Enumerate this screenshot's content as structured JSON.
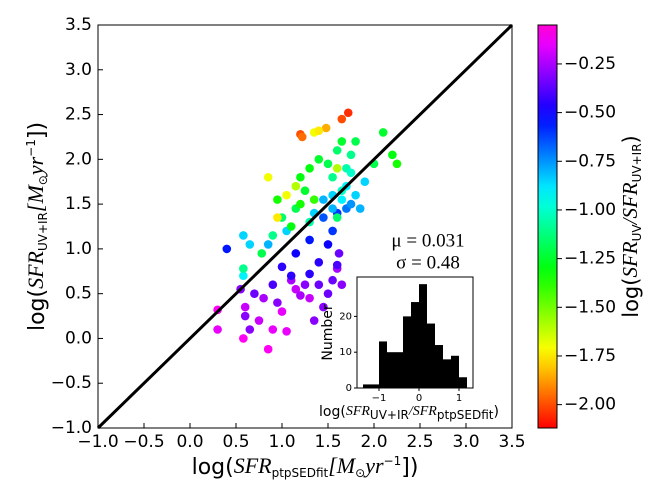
{
  "chart_data": {
    "type": "scatter",
    "xlabel": [
      "log(",
      "SFR",
      "ptpSEDfit",
      "[M",
      "⊙",
      "yr",
      "−1",
      "])"
    ],
    "ylabel": [
      "log(",
      "SFR",
      "UV+IR",
      "[M",
      "⊙",
      "yr",
      "−1",
      "])"
    ],
    "xlim": [
      -1.0,
      3.5
    ],
    "ylim": [
      -1.0,
      3.5
    ],
    "xticks": [
      {
        "value": -1.0,
        "label": "−1.0"
      },
      {
        "value": -0.5,
        "label": "−0.5"
      },
      {
        "value": 0,
        "label": "0.0"
      },
      {
        "value": 0.5,
        "label": "0.5"
      },
      {
        "value": 1,
        "label": "1.0"
      },
      {
        "value": 1.5,
        "label": "1.5"
      },
      {
        "value": 2,
        "label": "2.0"
      },
      {
        "value": 2.5,
        "label": "2.5"
      },
      {
        "value": 3,
        "label": "3.0"
      },
      {
        "value": 3.5,
        "label": "3.5"
      }
    ],
    "yticks": [
      {
        "value": -1.0,
        "label": "−1.0"
      },
      {
        "value": -0.5,
        "label": "−0.5"
      },
      {
        "value": 0,
        "label": "0.0"
      },
      {
        "value": 0.5,
        "label": "0.5"
      },
      {
        "value": 1,
        "label": "1.0"
      },
      {
        "value": 1.5,
        "label": "1.5"
      },
      {
        "value": 2,
        "label": "2.0"
      },
      {
        "value": 2.5,
        "label": "2.5"
      },
      {
        "value": 3,
        "label": "3.0"
      },
      {
        "value": 3.5,
        "label": "3.5"
      }
    ],
    "one_to_one_line": true,
    "colormap": "gist_rainbow",
    "clim": [
      -2.12,
      -0.05
    ],
    "colorbar_label": [
      "log(",
      "SFR",
      "UV",
      "/",
      "SFR",
      "UV+IR",
      ")"
    ],
    "colorbar_ticks": [
      {
        "value": -0.25,
        "label": "−0.25"
      },
      {
        "value": -0.5,
        "label": "−0.50"
      },
      {
        "value": -0.75,
        "label": "−0.75"
      },
      {
        "value": -1.0,
        "label": "−1.00"
      },
      {
        "value": -1.25,
        "label": "−1.25"
      },
      {
        "value": -1.5,
        "label": "−1.50"
      },
      {
        "value": -1.75,
        "label": "−1.75"
      },
      {
        "value": -2.0,
        "label": "−2.00"
      }
    ],
    "x": [
      0.3,
      0.3,
      0.58,
      0.6,
      0.75,
      0.85,
      0.9,
      1.0,
      1.05,
      1.15,
      1.2,
      1.3,
      1.35,
      1.45,
      1.5,
      1.55,
      1.6,
      1.62,
      1.65,
      0.6,
      0.7,
      0.65,
      0.95,
      1.1,
      1.25,
      1.4,
      0.8,
      0.55,
      0.4,
      1.0,
      1.15,
      1.3,
      1.4,
      1.5,
      1.55,
      1.45,
      1.6,
      1.7,
      1.75,
      1.1,
      0.9,
      1.3,
      1.6,
      0.58,
      0.58,
      0.65,
      0.85,
      1.05,
      1.35,
      1.55,
      1.65,
      1.8,
      1.9,
      1.55,
      1.7,
      1.45,
      1.85,
      0.78,
      0.9,
      1.0,
      1.15,
      1.2,
      1.25,
      1.3,
      1.4,
      1.5,
      1.6,
      1.55,
      1.7,
      1.75,
      1.8,
      2.1,
      2.2,
      2.0,
      1.65,
      1.35,
      1.2,
      1.1,
      0.95,
      1.75,
      1.65,
      1.3,
      0.58,
      1.6,
      2.25,
      1.72,
      1.65,
      1.2,
      1.22,
      1.48,
      1.35,
      1.4,
      0.85,
      1.05,
      0.95,
      1.6,
      1.15
    ],
    "y": [
      0.32,
      0.1,
      0.0,
      0.35,
      0.2,
      -0.12,
      0.1,
      0.3,
      0.08,
      0.55,
      0.48,
      0.45,
      0.2,
      0.35,
      0.5,
      0.65,
      0.78,
      0.95,
      0.6,
      0.25,
      0.5,
      0.1,
      0.4,
      0.65,
      0.6,
      0.6,
      0.45,
      0.55,
      1.0,
      0.8,
      0.95,
      1.1,
      0.85,
      1.05,
      1.2,
      1.35,
      1.4,
      1.45,
      1.5,
      0.7,
      0.6,
      0.72,
      0.82,
      1.15,
      0.7,
      1.05,
      1.05,
      1.2,
      1.4,
      1.6,
      1.55,
      1.6,
      1.75,
      1.45,
      1.7,
      1.55,
      1.45,
      0.95,
      1.15,
      1.35,
      1.45,
      1.8,
      1.65,
      1.9,
      2.0,
      1.95,
      2.1,
      1.8,
      1.9,
      2.05,
      2.2,
      2.3,
      2.05,
      1.95,
      2.2,
      1.55,
      1.5,
      1.25,
      1.55,
      1.85,
      1.65,
      1.3,
      0.78,
      1.35,
      1.95,
      2.52,
      2.45,
      2.28,
      2.25,
      2.35,
      2.3,
      2.32,
      1.8,
      1.6,
      1.35,
      1.9,
      1.7
    ],
    "c": [
      -0.1,
      -0.15,
      -0.1,
      -0.2,
      -0.2,
      -0.1,
      -0.15,
      -0.15,
      -0.15,
      -0.2,
      -0.25,
      -0.2,
      -0.3,
      -0.3,
      -0.35,
      -0.35,
      -0.25,
      -0.35,
      -0.3,
      -0.3,
      -0.35,
      -0.3,
      -0.3,
      -0.25,
      -0.3,
      -0.35,
      -0.25,
      -0.3,
      -0.55,
      -0.45,
      -0.5,
      -0.55,
      -0.45,
      -0.5,
      -0.6,
      -0.65,
      -0.6,
      -0.7,
      -0.75,
      -0.45,
      -0.4,
      -0.45,
      -0.4,
      -0.85,
      -0.9,
      -0.85,
      -0.8,
      -0.85,
      -0.85,
      -0.85,
      -0.9,
      -0.85,
      -0.85,
      -0.8,
      -0.9,
      -0.8,
      -0.8,
      -1.2,
      -1.1,
      -1.15,
      -1.2,
      -1.3,
      -1.25,
      -1.3,
      -1.25,
      -1.2,
      -1.15,
      -1.1,
      -1.05,
      -1.1,
      -1.2,
      -1.25,
      -1.3,
      -1.2,
      -1.25,
      -1.4,
      -1.35,
      -1.3,
      -1.35,
      -1.0,
      -1.0,
      -1.05,
      -1.1,
      -1.15,
      -1.35,
      -2.05,
      -2.0,
      -2.0,
      -1.95,
      -1.85,
      -1.7,
      -1.75,
      -1.7,
      -1.7,
      -1.75,
      -1.6,
      -1.6
    ],
    "annotations": [
      "μ = 0.031",
      "σ = 0.48"
    ],
    "inset": {
      "type": "histogram",
      "bins": [
        -1.4,
        -1.2,
        -1.0,
        -0.8,
        -0.6,
        -0.4,
        -0.2,
        0.0,
        0.2,
        0.4,
        0.6,
        0.8,
        1.0,
        1.2
      ],
      "counts": [
        1,
        1,
        13,
        10,
        10,
        20,
        24,
        29,
        18,
        12,
        8,
        9,
        3
      ],
      "color": "#000000",
      "xlim": [
        -1.55,
        1.35
      ],
      "ylim": [
        0,
        31
      ],
      "xticks": [
        {
          "value": -1,
          "label": "−1"
        },
        0,
        1
      ],
      "yticks": [
        0,
        10,
        20
      ],
      "ylabel": "Number",
      "xlabel": [
        "log(",
        "SFR",
        "UV+IR",
        "/",
        "SFR",
        "ptpSEDfit",
        ")"
      ]
    }
  }
}
